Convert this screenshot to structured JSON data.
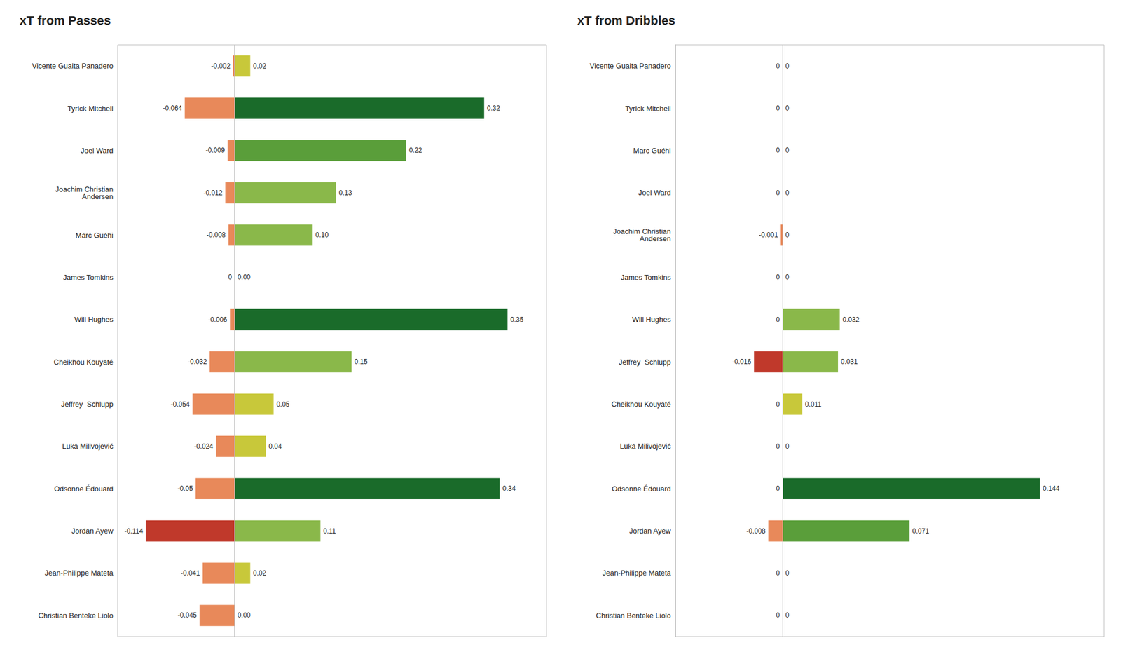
{
  "chart_data": [
    {
      "type": "bar",
      "orientation": "horizontal",
      "title": "xT from Passes",
      "categories": [
        "Vicente Guaita Panadero",
        "Tyrick Mitchell",
        "Joel Ward",
        "Joachim Christian\nAndersen",
        "Marc Guéhi",
        "James Tomkins",
        "Will Hughes",
        "Cheikhou Kouyaté",
        "Jeffrey  Schlupp",
        "Luka Milivojević",
        "Odsonne Édouard",
        "Jordan Ayew",
        "Jean-Philippe Mateta",
        "Christian Benteke Liolo"
      ],
      "series": [
        {
          "values": [
            -0.002,
            -0.064,
            -0.009,
            -0.012,
            -0.008,
            0,
            -0.006,
            -0.032,
            -0.054,
            -0.024,
            -0.05,
            -0.114,
            -0.041,
            -0.045
          ],
          "value_labels": [
            "-0.002",
            "-0.064",
            "-0.009",
            "-0.012",
            "-0.008",
            "0",
            "-0.006",
            "-0.032",
            "-0.054",
            "-0.024",
            "-0.05",
            "-0.114",
            "-0.041",
            "-0.045"
          ],
          "colors": [
            "#e8895a",
            "#e8895a",
            "#e8895a",
            "#e8895a",
            "#e8895a",
            "#e8895a",
            "#e8895a",
            "#e8895a",
            "#e8895a",
            "#e8895a",
            "#e8895a",
            "#c0392b",
            "#e8895a",
            "#e8895a"
          ]
        },
        {
          "values": [
            0.02,
            0.32,
            0.22,
            0.13,
            0.1,
            0.0,
            0.35,
            0.15,
            0.05,
            0.04,
            0.34,
            0.11,
            0.02,
            0.0
          ],
          "value_labels": [
            "0.02",
            "0.32",
            "0.22",
            "0.13",
            "0.10",
            "0.00",
            "0.35",
            "0.15",
            "0.05",
            "0.04",
            "0.34",
            "0.11",
            "0.02",
            "0.00"
          ],
          "colors": [
            "#c8c83a",
            "#1a6b2a",
            "#5a9e3a",
            "#8ab84a",
            "#8ab84a",
            "#c8c83a",
            "#1a6b2a",
            "#8ab84a",
            "#c8c83a",
            "#c8c83a",
            "#1a6b2a",
            "#8ab84a",
            "#c8c83a",
            "#c8c83a"
          ]
        }
      ],
      "xlim": [
        -0.15,
        0.4
      ],
      "data_labels": true,
      "tick_labels": "y",
      "grid": false
    },
    {
      "type": "bar",
      "orientation": "horizontal",
      "title": "xT from Dribbles",
      "categories": [
        "Vicente Guaita Panadero",
        "Tyrick Mitchell",
        "Marc Guéhi",
        "Joel Ward",
        "Joachim Christian\nAndersen",
        "James Tomkins",
        "Will Hughes",
        "Jeffrey  Schlupp",
        "Cheikhou Kouyaté",
        "Luka Milivojević",
        "Odsonne Édouard",
        "Jordan Ayew",
        "Jean-Philippe Mateta",
        "Christian Benteke Liolo"
      ],
      "series": [
        {
          "values": [
            0,
            0,
            0,
            0,
            -0.001,
            0,
            0,
            -0.016,
            0,
            0,
            0,
            -0.008,
            0,
            0
          ],
          "value_labels": [
            "0",
            "0",
            "0",
            "0",
            "-0.001",
            "0",
            "0",
            "-0.016",
            "0",
            "0",
            "0",
            "-0.008",
            "0",
            "0"
          ],
          "colors": [
            "#e8895a",
            "#e8895a",
            "#e8895a",
            "#e8895a",
            "#e8895a",
            "#e8895a",
            "#e8895a",
            "#c0392b",
            "#e8895a",
            "#e8895a",
            "#e8895a",
            "#e8895a",
            "#e8895a",
            "#e8895a"
          ]
        },
        {
          "values": [
            0,
            0,
            0,
            0,
            0,
            0,
            0.032,
            0.031,
            0.011,
            0,
            0.144,
            0.071,
            0,
            0
          ],
          "value_labels": [
            "0",
            "0",
            "0",
            "0",
            "0",
            "0",
            "0.032",
            "0.031",
            "0.011",
            "0",
            "0.144",
            "0.071",
            "0",
            "0"
          ],
          "colors": [
            "#c8c83a",
            "#c8c83a",
            "#c8c83a",
            "#c8c83a",
            "#c8c83a",
            "#c8c83a",
            "#8ab84a",
            "#8ab84a",
            "#c8c83a",
            "#c8c83a",
            "#1a6b2a",
            "#5a9e3a",
            "#c8c83a",
            "#c8c83a"
          ]
        }
      ],
      "xlim": [
        -0.06,
        0.18
      ],
      "data_labels": true,
      "tick_labels": "y",
      "grid": false
    }
  ]
}
